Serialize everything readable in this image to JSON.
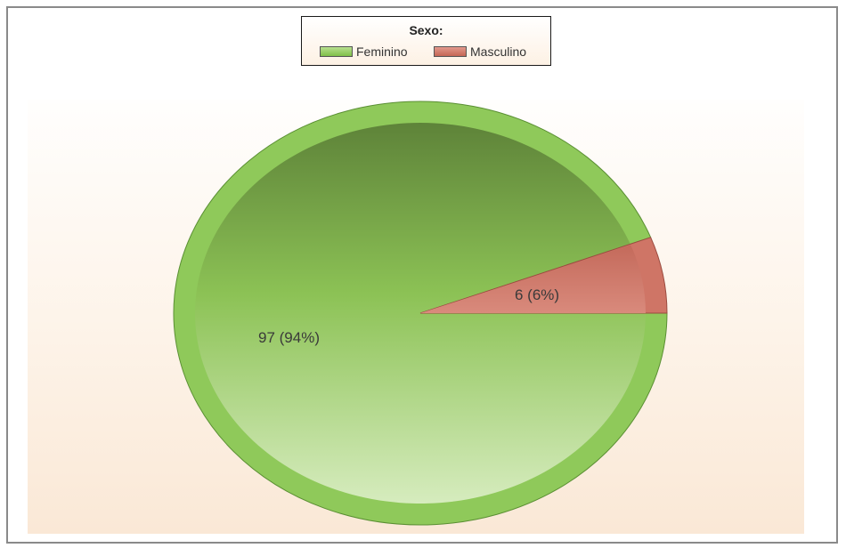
{
  "chart_data": {
    "type": "pie",
    "legend_title": "Sexo:",
    "legend_position": "top-center",
    "slices": [
      {
        "name": "Feminino",
        "value": 97,
        "percent": 94,
        "label": "97 (94%)",
        "color": "#8fc95a",
        "border": "#5a8f33"
      },
      {
        "name": "Masculino",
        "value": 6,
        "percent": 6,
        "label": "6 (6%)",
        "color": "#cf7566",
        "border": "#9a4b3f"
      }
    ]
  }
}
